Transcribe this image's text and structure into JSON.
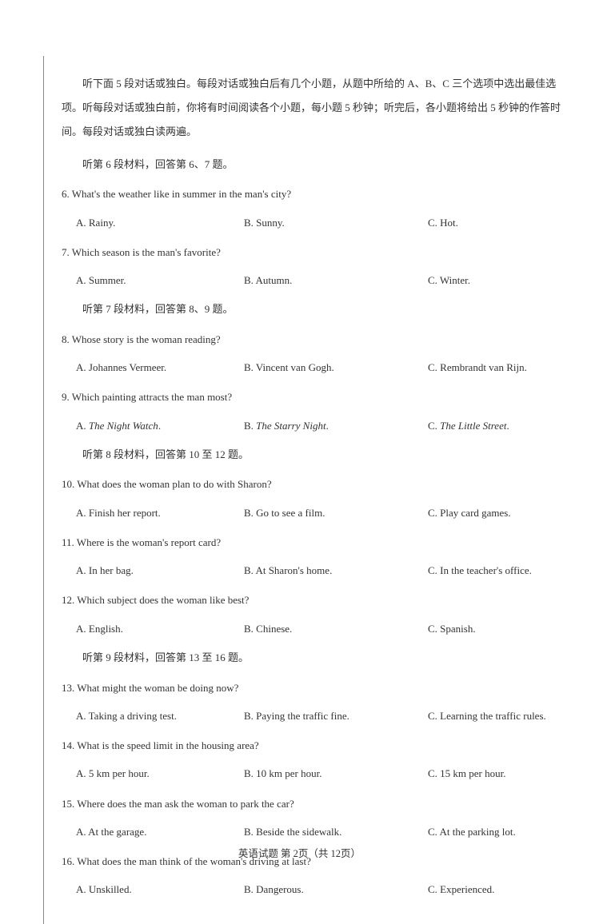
{
  "intro": "听下面 5 段对话或独白。每段对话或独白后有几个小题，从题中所给的 A、B、C 三个选项中选出最佳选项。听每段对话或独白前，你将有时间阅读各个小题，每小题 5 秒钟；听完后，各小题将给出 5 秒钟的作答时间。每段对话或独白读两遍。",
  "sections": [
    {
      "note": "听第 6 段材料，回答第 6、7 题。",
      "questions": [
        {
          "num": "6",
          "stem": "What's the weather like in summer in the man's city?",
          "a": "A. Rainy.",
          "b": "B. Sunny.",
          "c": "C. Hot."
        },
        {
          "num": "7",
          "stem": "Which season is the man's favorite?",
          "a": "A. Summer.",
          "b": "B. Autumn.",
          "c": "C. Winter."
        }
      ]
    },
    {
      "note": "听第 7 段材料，回答第 8、9 题。",
      "questions": [
        {
          "num": "8",
          "stem": "Whose story is the woman reading?",
          "a": "A. Johannes Vermeer.",
          "b": "B. Vincent van Gogh.",
          "c": "C. Rembrandt van Rijn."
        },
        {
          "num": "9",
          "stem": "Which painting attracts the man most?",
          "a": "A. ",
          "a_i": "The Night Watch",
          "a_suf": ".",
          "b": "B. ",
          "b_i": "The Starry Night",
          "b_suf": ".",
          "c": "C. ",
          "c_i": "The Little Street",
          "c_suf": "."
        }
      ]
    },
    {
      "note": "听第 8 段材料，回答第 10 至 12 题。",
      "questions": [
        {
          "num": "10",
          "stem": "What does the woman plan to do with Sharon?",
          "a": "A. Finish her report.",
          "b": "B. Go to see a film.",
          "c": "C. Play card games."
        },
        {
          "num": "11",
          "stem": "Where is the woman's report card?",
          "a": "A. In her bag.",
          "b": "B. At Sharon's home.",
          "c": "C. In the teacher's office."
        },
        {
          "num": "12",
          "stem": "Which subject does the woman like best?",
          "a": "A. English.",
          "b": "B. Chinese.",
          "c": "C. Spanish."
        }
      ]
    },
    {
      "note": "听第 9 段材料，回答第 13 至 16 题。",
      "questions": [
        {
          "num": "13",
          "stem": "What might the woman be doing now?",
          "a": "A. Taking a driving test.",
          "b": "B. Paying the traffic fine.",
          "c": "C. Learning the traffic rules."
        },
        {
          "num": "14",
          "stem": "What is the speed limit in the housing area?",
          "a": "A. 5 km per hour.",
          "b": "B. 10 km per hour.",
          "c": "C. 15 km per hour."
        },
        {
          "num": "15",
          "stem": "Where does the man ask the woman to park the car?",
          "a": "A. At the garage.",
          "b": "B. Beside the sidewalk.",
          "c": "C. At the parking lot."
        },
        {
          "num": "16",
          "stem": "What does the man think of the woman's driving at last?",
          "a": "A. Unskilled.",
          "b": "B. Dangerous.",
          "c": "C. Experienced."
        }
      ]
    }
  ],
  "footer": "英语试题  第 2页（共 12页）"
}
